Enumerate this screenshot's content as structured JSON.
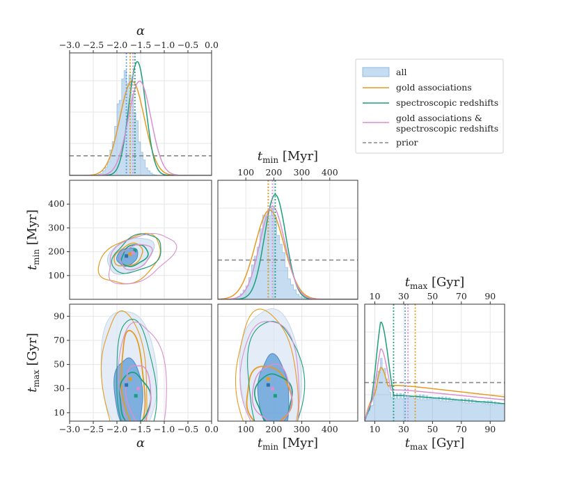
{
  "chart_data": {
    "type": "corner",
    "colors": {
      "all": "#5b9bd5",
      "gold": "#e69a1f",
      "spec": "#1a9e7a",
      "gold_spec": "#d98fd0",
      "prior": "#888888"
    },
    "legend": {
      "placement": "top-right",
      "entries": [
        {
          "key": "all",
          "label": "all",
          "style": "patch"
        },
        {
          "key": "gold",
          "label": "gold associations",
          "style": "line"
        },
        {
          "key": "spec",
          "label": "spectroscopic redshifts",
          "style": "line"
        },
        {
          "key": "gold_spec",
          "label": "gold associations &",
          "label2": "spectroscopic redshifts",
          "style": "line"
        },
        {
          "key": "prior",
          "label": "prior",
          "style": "dashed"
        }
      ]
    },
    "parameters": {
      "alpha": {
        "symbol": "α",
        "range": [
          -3.0,
          0.0
        ],
        "ticks": [
          -3.0,
          -2.5,
          -2.0,
          -1.5,
          -1.0,
          -0.5,
          0.0
        ],
        "tick_labels": [
          "−3.0",
          "−2.5",
          "−2.0",
          "−1.5",
          "−1.0",
          "−0.5",
          "0.0"
        ]
      },
      "tmin": {
        "symbol": "t",
        "sub": "min",
        "unit": "[Myr]",
        "range": [
          0,
          500
        ],
        "ticks": [
          100,
          200,
          300,
          400
        ],
        "tick_labels": [
          "100",
          "200",
          "300",
          "400"
        ]
      },
      "tmax": {
        "symbol": "t",
        "sub": "max",
        "unit": "[Gyr]",
        "range": [
          3,
          100
        ],
        "ticks": [
          10,
          30,
          50,
          70,
          90
        ],
        "tick_labels": [
          "10",
          "30",
          "50",
          "70",
          "90"
        ]
      }
    },
    "marginals": {
      "alpha": {
        "ymax": 1.0,
        "prior_level": 0.16,
        "all_hist_center": -1.8,
        "all_hist_sigma": 0.19,
        "curves": [
          {
            "key": "gold",
            "mu": -1.68,
            "sigma": 0.26,
            "peak": 0.77
          },
          {
            "key": "spec",
            "mu": -1.57,
            "sigma": 0.18,
            "peak": 0.93
          },
          {
            "key": "gold_spec",
            "mu": -1.52,
            "sigma": 0.24,
            "peak": 0.77
          }
        ],
        "medians": {
          "all": -1.8,
          "gold": -1.72,
          "spec": -1.62,
          "gold_spec": -1.66
        }
      },
      "tmin": {
        "ymax": 1.0,
        "prior_level": 0.33,
        "all_hist_center": 185,
        "all_hist_sigma": 42,
        "curves": [
          {
            "key": "gold",
            "mu": 185,
            "sigma": 52,
            "peak": 0.75
          },
          {
            "key": "spec",
            "mu": 205,
            "sigma": 38,
            "peak": 0.88
          },
          {
            "key": "gold_spec",
            "mu": 195,
            "sigma": 45,
            "peak": 0.78
          }
        ],
        "medians": {
          "all": 180,
          "gold": 180,
          "spec": 205,
          "gold_spec": 195
        }
      },
      "tmax": {
        "ymax": 1.0,
        "prior_level": 0.33,
        "all_hist_peak_x": 14,
        "curves": [
          {
            "key": "gold",
            "peak_x": 14,
            "peak": 0.46,
            "tail": 0.32
          },
          {
            "key": "spec",
            "peak_x": 14,
            "peak": 0.85,
            "tail": 0.23
          },
          {
            "key": "gold_spec",
            "peak_x": 14,
            "peak": 0.62,
            "tail": 0.28
          }
        ],
        "medians": {
          "all": 31,
          "gold": 38,
          "spec": 23,
          "gold_spec": 33
        }
      }
    },
    "joint_points": {
      "tmin_alpha": {
        "gold": [
          -1.72,
          190
        ],
        "spec": [
          -1.62,
          205
        ],
        "gold_spec": [
          -1.66,
          195
        ],
        "all": [
          -1.8,
          182
        ]
      },
      "tmax_alpha": {
        "gold": [
          -1.72,
          38
        ],
        "spec": [
          -1.6,
          24
        ],
        "gold_spec": [
          -1.55,
          30
        ],
        "all": [
          -1.8,
          33
        ]
      },
      "tmax_tmin": {
        "gold": [
          180,
          38
        ],
        "spec": [
          205,
          24
        ],
        "gold_spec": [
          195,
          30
        ],
        "all": [
          180,
          33
        ]
      }
    }
  }
}
